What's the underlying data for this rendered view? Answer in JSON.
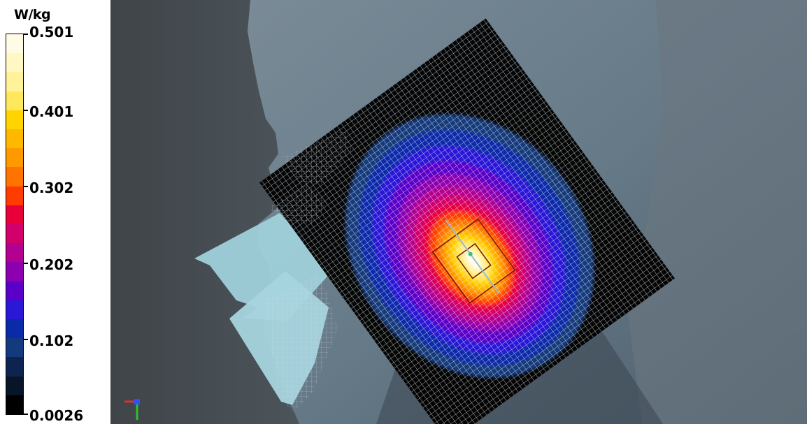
{
  "colorbar": {
    "unit": "W/kg",
    "max_label": "0.501",
    "labels": [
      "0.501",
      "0.401",
      "0.302",
      "0.202",
      "0.102",
      "0.0026"
    ],
    "bands_top_to_bottom": [
      "#fffbe6",
      "#fff7c4",
      "#fff29a",
      "#ffe85c",
      "#ffd400",
      "#ffb800",
      "#ff9900",
      "#ff7300",
      "#ff3c00",
      "#e8003a",
      "#d1006a",
      "#b30090",
      "#8c00b0",
      "#5a00c8",
      "#2a18d6",
      "#0a2aaa",
      "#123a7c",
      "#0d2450",
      "#081428",
      "#000000"
    ]
  },
  "axes_triad": {
    "x_color": "#e03030",
    "y_color": "#30c030",
    "z_color": "#3050ff"
  }
}
